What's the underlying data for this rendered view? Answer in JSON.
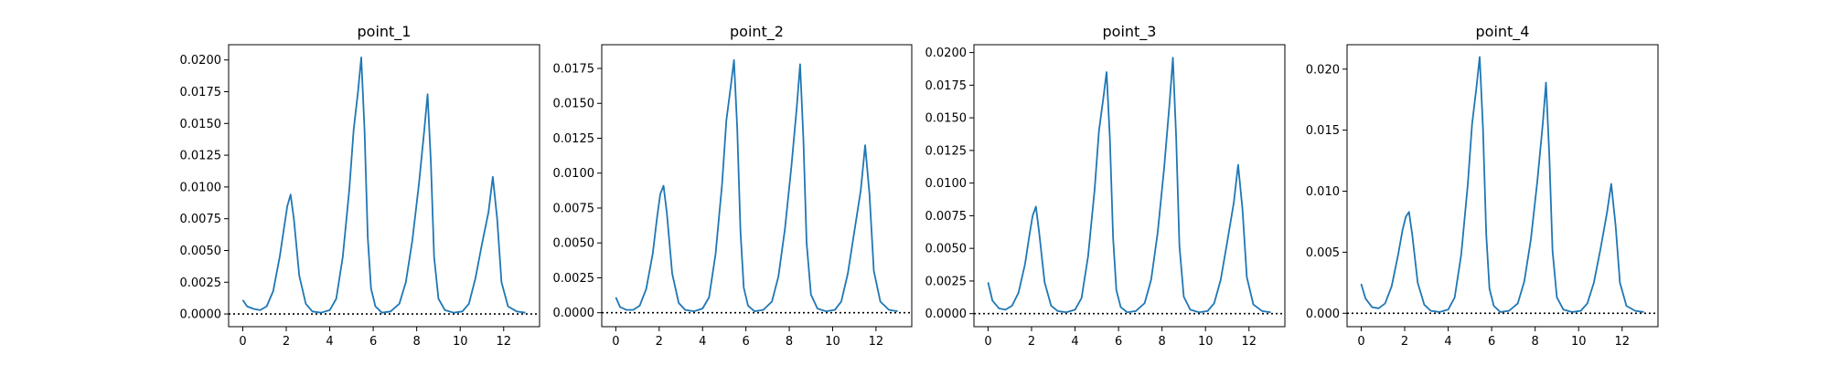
{
  "chart_data": [
    {
      "type": "line",
      "title": "point_1",
      "xlim": [
        -0.65,
        13.65
      ],
      "ylim": [
        -0.001,
        0.0212
      ],
      "xticks": [
        0,
        2,
        4,
        6,
        8,
        10,
        12
      ],
      "xtick_labels": [
        "0",
        "2",
        "4",
        "6",
        "8",
        "10",
        "12"
      ],
      "yticks": [
        0,
        0.0025,
        0.005,
        0.0075,
        0.01,
        0.0125,
        0.015,
        0.0175,
        0.02
      ],
      "ytick_labels": [
        "0.0000",
        "0.0025",
        "0.0050",
        "0.0075",
        "0.0100",
        "0.0125",
        "0.0150",
        "0.0175",
        "0.0200"
      ],
      "reference_line": {
        "y": 0,
        "style": "dotted"
      },
      "color": "#1f77b4",
      "series": [
        {
          "x": [
            0,
            0.2,
            0.5,
            0.8,
            1.1,
            1.4,
            1.7,
            1.9,
            2.05,
            2.2,
            2.35,
            2.6,
            2.9,
            3.2,
            3.6,
            4.0,
            4.3,
            4.6,
            4.9,
            5.1,
            5.3,
            5.45,
            5.6,
            5.75,
            5.9,
            6.1,
            6.4,
            6.8,
            7.2,
            7.5,
            7.8,
            8.1,
            8.35,
            8.5,
            8.65,
            8.8,
            9.0,
            9.3,
            9.7,
            10.1,
            10.4,
            10.7,
            11.0,
            11.3,
            11.5,
            11.7,
            11.9,
            12.2,
            12.6,
            13.0
          ],
          "y": [
            0.0011,
            0.0006,
            0.0004,
            0.0003,
            0.0006,
            0.0018,
            0.0045,
            0.0068,
            0.0085,
            0.0094,
            0.0075,
            0.003,
            0.0008,
            0.0002,
            0.0001,
            0.0003,
            0.0012,
            0.0045,
            0.0098,
            0.0145,
            0.0175,
            0.0202,
            0.0145,
            0.006,
            0.002,
            0.0006,
            0.0001,
            0.0002,
            0.0008,
            0.0025,
            0.0058,
            0.0102,
            0.0145,
            0.0173,
            0.012,
            0.0045,
            0.0012,
            0.0003,
            0.0001,
            0.0002,
            0.0008,
            0.0028,
            0.0055,
            0.008,
            0.0108,
            0.0075,
            0.0025,
            0.0006,
            0.0002,
            0.0001
          ]
        }
      ]
    },
    {
      "type": "line",
      "title": "point_2",
      "xlim": [
        -0.65,
        13.65
      ],
      "ylim": [
        -0.001,
        0.0192
      ],
      "xticks": [
        0,
        2,
        4,
        6,
        8,
        10,
        12
      ],
      "xtick_labels": [
        "0",
        "2",
        "4",
        "6",
        "8",
        "10",
        "12"
      ],
      "yticks": [
        0,
        0.0025,
        0.005,
        0.0075,
        0.01,
        0.0125,
        0.015,
        0.0175
      ],
      "ytick_labels": [
        "0.0000",
        "0.0025",
        "0.0050",
        "0.0075",
        "0.0100",
        "0.0125",
        "0.0150",
        "0.0175"
      ],
      "reference_line": {
        "y": 0,
        "style": "dotted"
      },
      "color": "#1f77b4",
      "series": [
        {
          "x": [
            0,
            0.2,
            0.5,
            0.8,
            1.1,
            1.4,
            1.7,
            1.9,
            2.05,
            2.2,
            2.35,
            2.6,
            2.9,
            3.2,
            3.6,
            4.0,
            4.3,
            4.6,
            4.9,
            5.1,
            5.3,
            5.45,
            5.6,
            5.75,
            5.9,
            6.1,
            6.4,
            6.8,
            7.2,
            7.5,
            7.8,
            8.1,
            8.35,
            8.5,
            8.65,
            8.8,
            9.0,
            9.3,
            9.7,
            10.1,
            10.4,
            10.7,
            11.0,
            11.3,
            11.5,
            11.7,
            11.9,
            12.2,
            12.6,
            13.0
          ],
          "y": [
            0.0011,
            0.0004,
            0.0002,
            0.0002,
            0.0005,
            0.0017,
            0.0042,
            0.0068,
            0.0085,
            0.0091,
            0.0072,
            0.0028,
            0.0007,
            0.0002,
            0.0001,
            0.0003,
            0.0011,
            0.0042,
            0.0092,
            0.0138,
            0.0162,
            0.0181,
            0.0132,
            0.0058,
            0.0018,
            0.0005,
            0.0001,
            0.0002,
            0.0008,
            0.0026,
            0.006,
            0.0105,
            0.0148,
            0.0178,
            0.0125,
            0.005,
            0.0013,
            0.0003,
            0.0001,
            0.0002,
            0.0008,
            0.0028,
            0.0058,
            0.0088,
            0.012,
            0.0085,
            0.003,
            0.0008,
            0.0002,
            0.0001
          ]
        }
      ]
    },
    {
      "type": "line",
      "title": "point_3",
      "xlim": [
        -0.65,
        13.65
      ],
      "ylim": [
        -0.001,
        0.0206
      ],
      "xticks": [
        0,
        2,
        4,
        6,
        8,
        10,
        12
      ],
      "xtick_labels": [
        "0",
        "2",
        "4",
        "6",
        "8",
        "10",
        "12"
      ],
      "yticks": [
        0,
        0.0025,
        0.005,
        0.0075,
        0.01,
        0.0125,
        0.015,
        0.0175,
        0.02
      ],
      "ytick_labels": [
        "0.0000",
        "0.0025",
        "0.0050",
        "0.0075",
        "0.0100",
        "0.0125",
        "0.0150",
        "0.0175",
        "0.0200"
      ],
      "reference_line": {
        "y": 0,
        "style": "dotted"
      },
      "color": "#1f77b4",
      "series": [
        {
          "x": [
            0,
            0.2,
            0.5,
            0.8,
            1.1,
            1.4,
            1.7,
            1.9,
            2.05,
            2.2,
            2.35,
            2.6,
            2.9,
            3.2,
            3.6,
            4.0,
            4.3,
            4.6,
            4.9,
            5.1,
            5.3,
            5.45,
            5.6,
            5.75,
            5.9,
            6.1,
            6.4,
            6.8,
            7.2,
            7.5,
            7.8,
            8.1,
            8.35,
            8.5,
            8.65,
            8.8,
            9.0,
            9.3,
            9.7,
            10.1,
            10.4,
            10.7,
            11.0,
            11.3,
            11.5,
            11.7,
            11.9,
            12.2,
            12.6,
            13.0
          ],
          "y": [
            0.0024,
            0.001,
            0.0004,
            0.0003,
            0.0006,
            0.0016,
            0.0038,
            0.006,
            0.0075,
            0.0082,
            0.0062,
            0.0024,
            0.0006,
            0.0002,
            0.0001,
            0.0003,
            0.0012,
            0.0044,
            0.0095,
            0.014,
            0.0165,
            0.0185,
            0.0135,
            0.0058,
            0.0018,
            0.0005,
            0.0001,
            0.0002,
            0.0008,
            0.0026,
            0.0062,
            0.0112,
            0.0162,
            0.0196,
            0.0135,
            0.0052,
            0.0013,
            0.0003,
            0.0001,
            0.0002,
            0.0008,
            0.0026,
            0.0055,
            0.0085,
            0.0114,
            0.008,
            0.0028,
            0.0007,
            0.0002,
            0.0001
          ]
        }
      ]
    },
    {
      "type": "line",
      "title": "point_4",
      "xlim": [
        -0.65,
        13.65
      ],
      "ylim": [
        -0.0011,
        0.022
      ],
      "xticks": [
        0,
        2,
        4,
        6,
        8,
        10,
        12
      ],
      "xtick_labels": [
        "0",
        "2",
        "4",
        "6",
        "8",
        "10",
        "12"
      ],
      "yticks": [
        0,
        0.005,
        0.01,
        0.015,
        0.02
      ],
      "ytick_labels": [
        "0.000",
        "0.005",
        "0.010",
        "0.015",
        "0.020"
      ],
      "reference_line": {
        "y": 0,
        "style": "dotted"
      },
      "color": "#1f77b4",
      "series": [
        {
          "x": [
            0,
            0.2,
            0.5,
            0.8,
            1.1,
            1.4,
            1.7,
            1.9,
            2.05,
            2.2,
            2.35,
            2.6,
            2.9,
            3.2,
            3.6,
            4.0,
            4.3,
            4.6,
            4.9,
            5.1,
            5.3,
            5.45,
            5.6,
            5.75,
            5.9,
            6.1,
            6.4,
            6.8,
            7.2,
            7.5,
            7.8,
            8.1,
            8.35,
            8.5,
            8.65,
            8.8,
            9.0,
            9.3,
            9.7,
            10.1,
            10.4,
            10.7,
            11.0,
            11.3,
            11.5,
            11.7,
            11.9,
            12.2,
            12.6,
            13.0
          ],
          "y": [
            0.0024,
            0.0012,
            0.0005,
            0.0004,
            0.0008,
            0.0022,
            0.0048,
            0.0068,
            0.0079,
            0.0083,
            0.0064,
            0.0025,
            0.0007,
            0.0002,
            0.0001,
            0.0003,
            0.0013,
            0.0048,
            0.0105,
            0.0155,
            0.0185,
            0.021,
            0.0152,
            0.0065,
            0.002,
            0.0006,
            0.0001,
            0.0002,
            0.0008,
            0.0026,
            0.006,
            0.0108,
            0.0155,
            0.0189,
            0.013,
            0.0051,
            0.0013,
            0.0003,
            0.0001,
            0.0002,
            0.0008,
            0.0025,
            0.0052,
            0.0082,
            0.0106,
            0.0072,
            0.0025,
            0.0006,
            0.0002,
            0.0001
          ]
        }
      ]
    }
  ]
}
